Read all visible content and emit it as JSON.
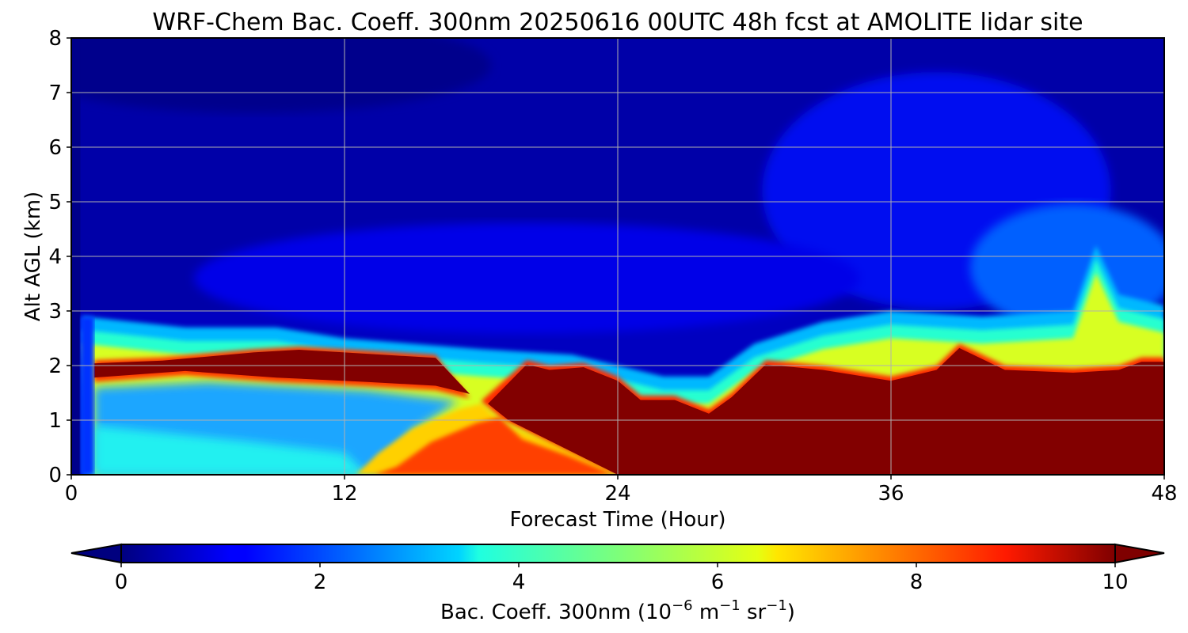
{
  "chart_data": {
    "type": "heatmap",
    "title": "WRF-Chem Bac. Coeff. 300nm  20250616 00UTC 48h fcst at AMOLITE lidar site",
    "xlabel": "Forecast Time (Hour)",
    "ylabel": "Alt AGL (km)",
    "xlim": [
      0,
      48
    ],
    "ylim": [
      0,
      8
    ],
    "x_ticks": [
      "0",
      "12",
      "24",
      "36",
      "48"
    ],
    "y_ticks": [
      "0",
      "1",
      "2",
      "3",
      "4",
      "5",
      "6",
      "7",
      "8"
    ],
    "grid": true,
    "colormap": "jet",
    "colorbar": {
      "label_prefix": "Bac. Coeff. 300nm  (10",
      "label_exp1": "−6",
      "label_mid": " m",
      "label_exp2": "−1",
      "label_mid2": " sr",
      "label_exp3": "−1",
      "label_suffix": ")",
      "vmin": 0,
      "vmax": 10,
      "ticks": [
        "0",
        "2",
        "4",
        "6",
        "8",
        "10"
      ],
      "extend": "both",
      "orientation": "horizontal"
    },
    "dense_layer_top_km": [
      {
        "x": 0.0,
        "y": 0.0
      },
      {
        "x": 0.6,
        "y": 1.95
      },
      {
        "x": 1.0,
        "y": 2.1
      },
      {
        "x": 4,
        "y": 2.15
      },
      {
        "x": 8,
        "y": 2.3
      },
      {
        "x": 10,
        "y": 2.35
      },
      {
        "x": 12,
        "y": 2.3
      },
      {
        "x": 16,
        "y": 2.2
      },
      {
        "x": 20,
        "y": 2.1
      },
      {
        "x": 21,
        "y": 2.0
      },
      {
        "x": 22.5,
        "y": 2.05
      },
      {
        "x": 24,
        "y": 1.8
      },
      {
        "x": 25,
        "y": 1.45
      },
      {
        "x": 26.5,
        "y": 1.45
      },
      {
        "x": 28,
        "y": 1.2
      },
      {
        "x": 29,
        "y": 1.5
      },
      {
        "x": 30.5,
        "y": 2.1
      },
      {
        "x": 33,
        "y": 2.0
      },
      {
        "x": 36,
        "y": 1.8
      },
      {
        "x": 38,
        "y": 2.0
      },
      {
        "x": 39,
        "y": 2.4
      },
      {
        "x": 41,
        "y": 2.0
      },
      {
        "x": 44,
        "y": 1.95
      },
      {
        "x": 46,
        "y": 2.0
      },
      {
        "x": 47,
        "y": 2.15
      },
      {
        "x": 48,
        "y": 2.15
      }
    ],
    "elevated_layer_bottom_km": [
      {
        "x": 1.0,
        "y": 1.7
      },
      {
        "x": 5,
        "y": 1.82
      },
      {
        "x": 9,
        "y": 1.7
      },
      {
        "x": 13,
        "y": 1.62
      },
      {
        "x": 16,
        "y": 1.55
      },
      {
        "x": 17.5,
        "y": 1.4
      }
    ],
    "surface_plume_top_km": [
      {
        "x": 12.5,
        "y": 0.0
      },
      {
        "x": 13.5,
        "y": 0.4
      },
      {
        "x": 15,
        "y": 0.85
      },
      {
        "x": 17,
        "y": 1.2
      },
      {
        "x": 18,
        "y": 1.3
      },
      {
        "x": 19,
        "y": 0.9
      },
      {
        "x": 21,
        "y": 0.6
      },
      {
        "x": 23,
        "y": 0.2
      },
      {
        "x": 24,
        "y": 0.0
      }
    ],
    "aerosol_layer_top_km": [
      {
        "x": 0.5,
        "y": 2.9
      },
      {
        "x": 5,
        "y": 2.7
      },
      {
        "x": 9,
        "y": 2.7
      },
      {
        "x": 12,
        "y": 2.5
      },
      {
        "x": 18,
        "y": 2.3
      },
      {
        "x": 22,
        "y": 2.2
      },
      {
        "x": 24,
        "y": 2.0
      },
      {
        "x": 26,
        "y": 1.8
      },
      {
        "x": 28,
        "y": 1.8
      },
      {
        "x": 30,
        "y": 2.4
      },
      {
        "x": 33,
        "y": 2.8
      },
      {
        "x": 36,
        "y": 3.0
      },
      {
        "x": 40,
        "y": 2.9
      },
      {
        "x": 44,
        "y": 3.0
      },
      {
        "x": 45,
        "y": 4.2
      },
      {
        "x": 46,
        "y": 3.3
      },
      {
        "x": 48,
        "y": 3.1
      }
    ]
  }
}
